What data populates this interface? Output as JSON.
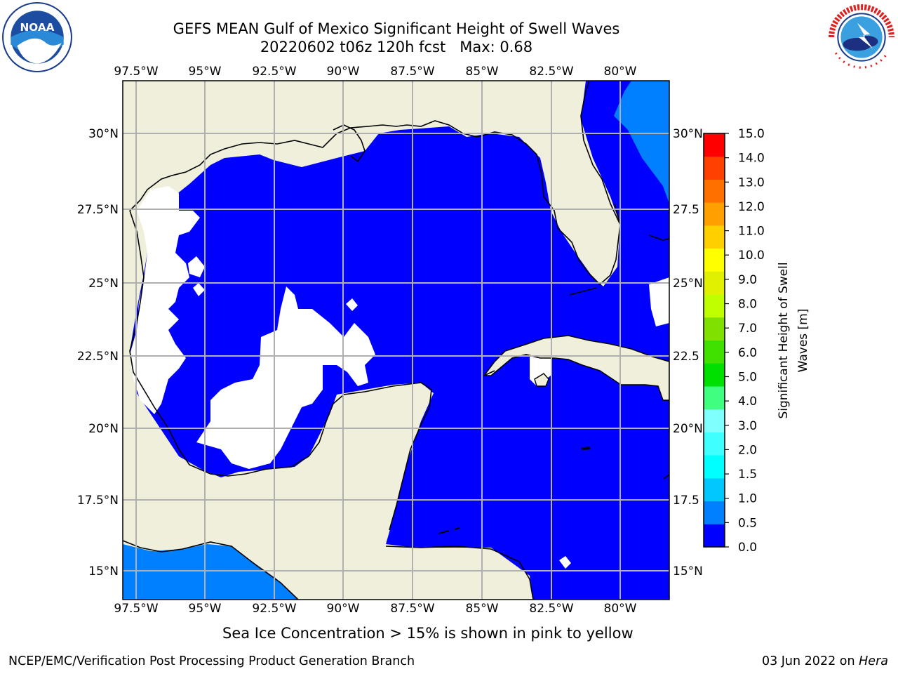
{
  "header": {
    "title_line1": "GEFS MEAN Gulf of Mexico Significant Height of Swell Waves",
    "title_line2": "20220602 t06z 120h fcst   Max: 0.68"
  },
  "logos": {
    "left": "noaa-logo",
    "right": "national-weather-service-logo"
  },
  "map": {
    "projection": "plate-carree",
    "lon_range": [
      -98.0,
      -78.0
    ],
    "lat_range": [
      14.0,
      31.8
    ],
    "grid": true,
    "lon_ticks": [
      "97.5°W",
      "95°W",
      "92.5°W",
      "90°W",
      "87.5°W",
      "85°W",
      "82.5°W",
      "80°W"
    ],
    "lat_ticks": [
      "15°N",
      "17.5°N",
      "20°N",
      "22.5°N",
      "25°N",
      "27.5°N",
      "30°N"
    ],
    "right_lat_ticks": [
      "15°N",
      "17.5",
      "20°N",
      "22.5",
      "25°N",
      "27.5",
      "30°N"
    ],
    "colors": {
      "land": "#efefdc",
      "no_data": "#ffffff",
      "swell_0_0_5": "#0000ff",
      "swell_0_5_1_0": "#0080ff",
      "coastline": "#000000",
      "grid": "#b0b0b0"
    }
  },
  "colorbar": {
    "label_line1": "Significant Height of Swell",
    "label_line2": "Waves [m]",
    "ticks": [
      "0.0",
      "0.5",
      "1.0",
      "1.5",
      "2.0",
      "3.0",
      "4.0",
      "5.0",
      "6.0",
      "7.0",
      "8.0",
      "9.0",
      "10.0",
      "11.0",
      "12.0",
      "13.0",
      "14.0",
      "15.0"
    ],
    "colors": [
      "#0000ff",
      "#0080ff",
      "#00c8ff",
      "#00ffff",
      "#40ffff",
      "#80ffff",
      "#40ff80",
      "#00e000",
      "#40e000",
      "#80e000",
      "#c0ff00",
      "#e0f000",
      "#ffff00",
      "#ffd000",
      "#ffa000",
      "#ff7000",
      "#ff4000",
      "#ff0000"
    ]
  },
  "caption": "Sea Ice Concentration > 15% is shown in pink to yellow",
  "footer": {
    "left": "NCEP/EMC/Verification Post Processing Product Generation Branch",
    "right_date": "03 Jun 2022 on ",
    "right_host": "Hera"
  }
}
